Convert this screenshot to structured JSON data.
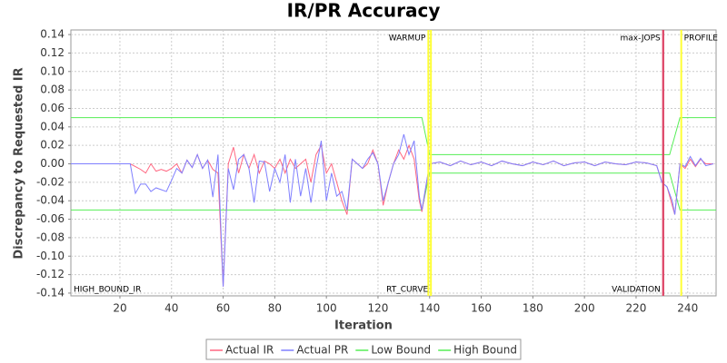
{
  "chart_data": {
    "type": "line",
    "title": "IR/PR Accuracy",
    "x_label": "Iteration",
    "y_label": "Discrepancy to Requested IR",
    "xlim": [
      1,
      251
    ],
    "ylim": [
      -0.143,
      0.145
    ],
    "xticks": [
      20,
      40,
      60,
      80,
      100,
      120,
      140,
      160,
      180,
      200,
      220,
      240
    ],
    "yticks": [
      0.14,
      0.12,
      {
        "value": 0.1,
        "label": "0.10"
      },
      0.08,
      0.06,
      0.04,
      0.02,
      {
        "value": 0,
        "label": "0.00"
      },
      -0.02,
      -0.04,
      -0.06,
      -0.08,
      {
        "value": -0.1,
        "label": "-0.10"
      },
      -0.12,
      -0.14
    ],
    "grid": true,
    "legend": "bottom",
    "x": [
      1,
      24,
      26,
      28,
      30,
      32,
      34,
      36,
      38,
      40,
      42,
      44,
      46,
      48,
      50,
      52,
      54,
      56,
      58,
      60,
      62,
      64,
      66,
      68,
      70,
      72,
      74,
      76,
      78,
      80,
      82,
      84,
      86,
      88,
      90,
      92,
      94,
      96,
      98,
      100,
      102,
      104,
      106,
      108,
      110,
      112,
      114,
      116,
      118,
      120,
      122,
      124,
      126,
      128,
      130,
      132,
      134,
      136,
      137,
      140,
      144,
      148,
      152,
      156,
      160,
      164,
      168,
      172,
      176,
      180,
      184,
      188,
      192,
      196,
      200,
      204,
      208,
      212,
      216,
      220,
      224,
      228,
      230,
      232,
      234,
      235,
      237,
      239,
      241,
      243,
      245,
      247,
      250
    ],
    "series": [
      {
        "name": "Actual IR",
        "color": "#ff6680",
        "values": [
          0,
          0,
          -0.003,
          -0.006,
          -0.01,
          0,
          -0.008,
          -0.006,
          -0.008,
          -0.005,
          0,
          -0.01,
          0.004,
          -0.004,
          0.01,
          -0.005,
          0.004,
          -0.006,
          -0.01,
          -0.133,
          0,
          0.018,
          -0.01,
          0.01,
          -0.005,
          0.01,
          -0.01,
          0.003,
          0,
          -0.005,
          0.005,
          -0.01,
          0.005,
          -0.005,
          0,
          0.005,
          -0.02,
          0.01,
          0.02,
          -0.01,
          0,
          -0.02,
          -0.04,
          -0.055,
          0.005,
          0,
          -0.005,
          0,
          0.015,
          0,
          -0.045,
          -0.02,
          0,
          0.015,
          0.005,
          0.02,
          0.005,
          -0.04,
          -0.052,
          0,
          0.002,
          -0.002,
          0.003,
          -0.001,
          0.002,
          -0.002,
          0.003,
          0,
          -0.002,
          0.002,
          -0.001,
          0.003,
          -0.002,
          0.001,
          0.002,
          -0.002,
          0.002,
          0,
          -0.001,
          0.002,
          0.001,
          -0.002,
          -0.02,
          -0.025,
          -0.045,
          -0.055,
          0,
          -0.005,
          0.005,
          -0.003,
          0.005,
          0,
          0
        ]
      },
      {
        "name": "Actual PR",
        "color": "#7f7fff",
        "values": [
          0,
          0,
          -0.032,
          -0.022,
          -0.022,
          -0.03,
          -0.026,
          -0.028,
          -0.03,
          -0.018,
          -0.005,
          -0.01,
          0.004,
          -0.004,
          0.01,
          -0.005,
          0.004,
          -0.036,
          0.01,
          -0.133,
          -0.005,
          -0.028,
          0.005,
          0.01,
          -0.005,
          -0.042,
          0.003,
          0.002,
          -0.03,
          -0.005,
          -0.02,
          0.01,
          -0.042,
          0.005,
          -0.035,
          -0.005,
          -0.042,
          -0.005,
          0.025,
          -0.04,
          -0.01,
          -0.035,
          -0.03,
          -0.05,
          0.005,
          0,
          -0.005,
          0.005,
          0.012,
          0,
          -0.04,
          -0.02,
          0,
          0.01,
          0.032,
          0.01,
          0.025,
          -0.035,
          -0.05,
          0,
          0.002,
          -0.002,
          0.003,
          -0.001,
          0.002,
          -0.002,
          0.003,
          0,
          -0.002,
          0.002,
          -0.001,
          0.003,
          -0.002,
          0.001,
          0.002,
          -0.002,
          0.002,
          0,
          -0.001,
          0.002,
          0.001,
          -0.002,
          -0.02,
          -0.025,
          -0.04,
          -0.055,
          0,
          -0.003,
          0.008,
          -0.002,
          0.006,
          -0.002,
          0
        ]
      },
      {
        "name": "Low Bound",
        "color": "#55ee55",
        "x": [
          1,
          137,
          140,
          233,
          237,
          251
        ],
        "values": [
          -0.05,
          -0.05,
          -0.01,
          -0.01,
          -0.05,
          -0.05
        ]
      },
      {
        "name": "High Bound",
        "color": "#55ee55",
        "x": [
          1,
          137,
          140,
          233,
          237,
          251
        ],
        "values": [
          0.05,
          0.05,
          0.01,
          0.01,
          0.05,
          0.05
        ]
      }
    ],
    "markers": [
      {
        "x": 1,
        "label": "HIGH_BOUND_IR",
        "position": "bottom"
      },
      {
        "x": 139.5,
        "label": "WARMUP",
        "position": "top",
        "color": "#ffff33"
      },
      {
        "x": 140.5,
        "label": "RT_CURVE",
        "position": "bottom",
        "color": "#ffff33"
      },
      {
        "x": 230.5,
        "label": "max-JOPS",
        "position": "top",
        "color": "#dd4466"
      },
      {
        "x": 230.5,
        "label": "VALIDATION",
        "position": "bottom",
        "color": "#dd4466"
      },
      {
        "x": 237.5,
        "label": "PROFILE",
        "position": "top",
        "color": "#ffff33"
      }
    ]
  }
}
